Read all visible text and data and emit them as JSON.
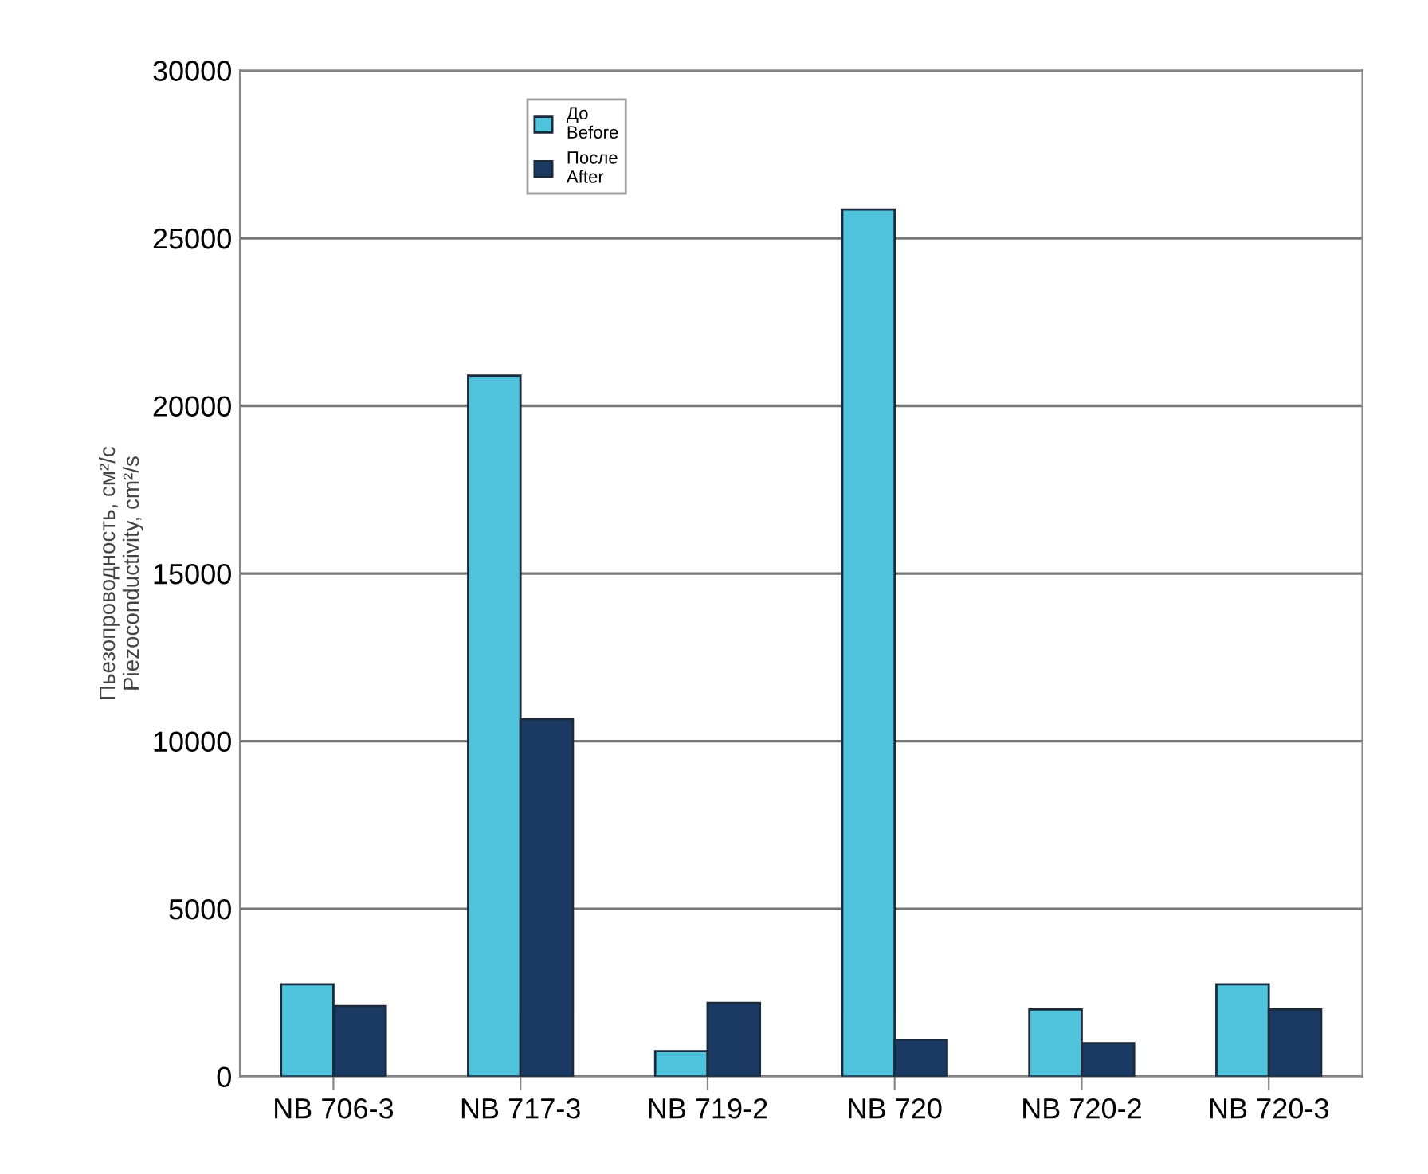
{
  "chart_data": {
    "type": "bar",
    "ylabel": "Пьезопроводность, см²/с\nPiezoconductivity, cm²/s",
    "categories": [
      "NB 706-3",
      "NB 717-3",
      "NB 719-2",
      "NB 720",
      "NB 720-2",
      "NB 720-3"
    ],
    "series": [
      {
        "name": "До\nBefore",
        "color": "#4fc3dc",
        "values": [
          2750,
          20900,
          760,
          25850,
          2000,
          2750
        ]
      },
      {
        "name": "После\nAfter",
        "color": "#1b3a63",
        "values": [
          2100,
          10650,
          2200,
          1100,
          1000,
          2000
        ]
      }
    ],
    "ylim": [
      0,
      30000
    ],
    "yticks": [
      0,
      5000,
      10000,
      15000,
      20000,
      25000,
      30000
    ],
    "grid": "y",
    "legend": "top"
  }
}
